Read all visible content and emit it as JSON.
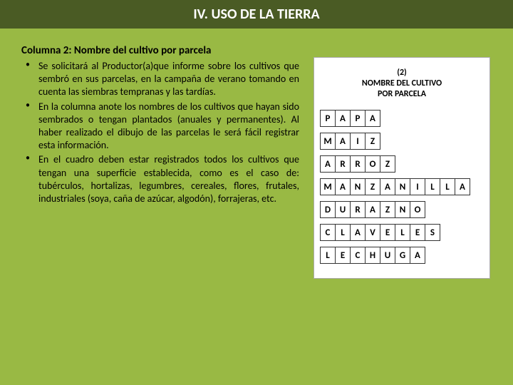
{
  "colors": {
    "page_bg": "#99b944",
    "title_bg": "#4a5b24",
    "title_text": "#ffffff",
    "body_text": "#000000",
    "panel_bg": "#ffffff",
    "cell_border": "#333333"
  },
  "title": "IV. USO DE LA TIERRA",
  "subtitle": "Columna 2: Nombre del cultivo por parcela",
  "bullets": [
    "Se solicitará al Productor(a)que informe sobre los cultivos que sembró en sus parcelas, en la campaña de verano tomando en cuenta las siembras tempranas y las tardías.",
    "En la columna anote los nombres de los cultivos que hayan sido sembrados o tengan plantados (anuales y permanentes). Al haber realizado el dibujo de las parcelas le será fácil registrar esta información.",
    "En el cuadro deben estar registrados todos los cultivos que tengan una superficie establecida, como es el caso de: tubérculos, hortalizas, legumbres, cereales, flores, frutales, industriales (soya, caña de azúcar, algodón), forrajeras, etc."
  ],
  "table": {
    "header_number": "(2)",
    "header_line1": "NOMBRE DEL CULTIVO",
    "header_line2": "POR PARCELA",
    "num_columns": 10,
    "words": [
      "PAPA",
      "MAIZ",
      "ARROZ",
      "MANZANILLA",
      "DURAZNO",
      "CLAVELES",
      "LECHUGA"
    ]
  }
}
